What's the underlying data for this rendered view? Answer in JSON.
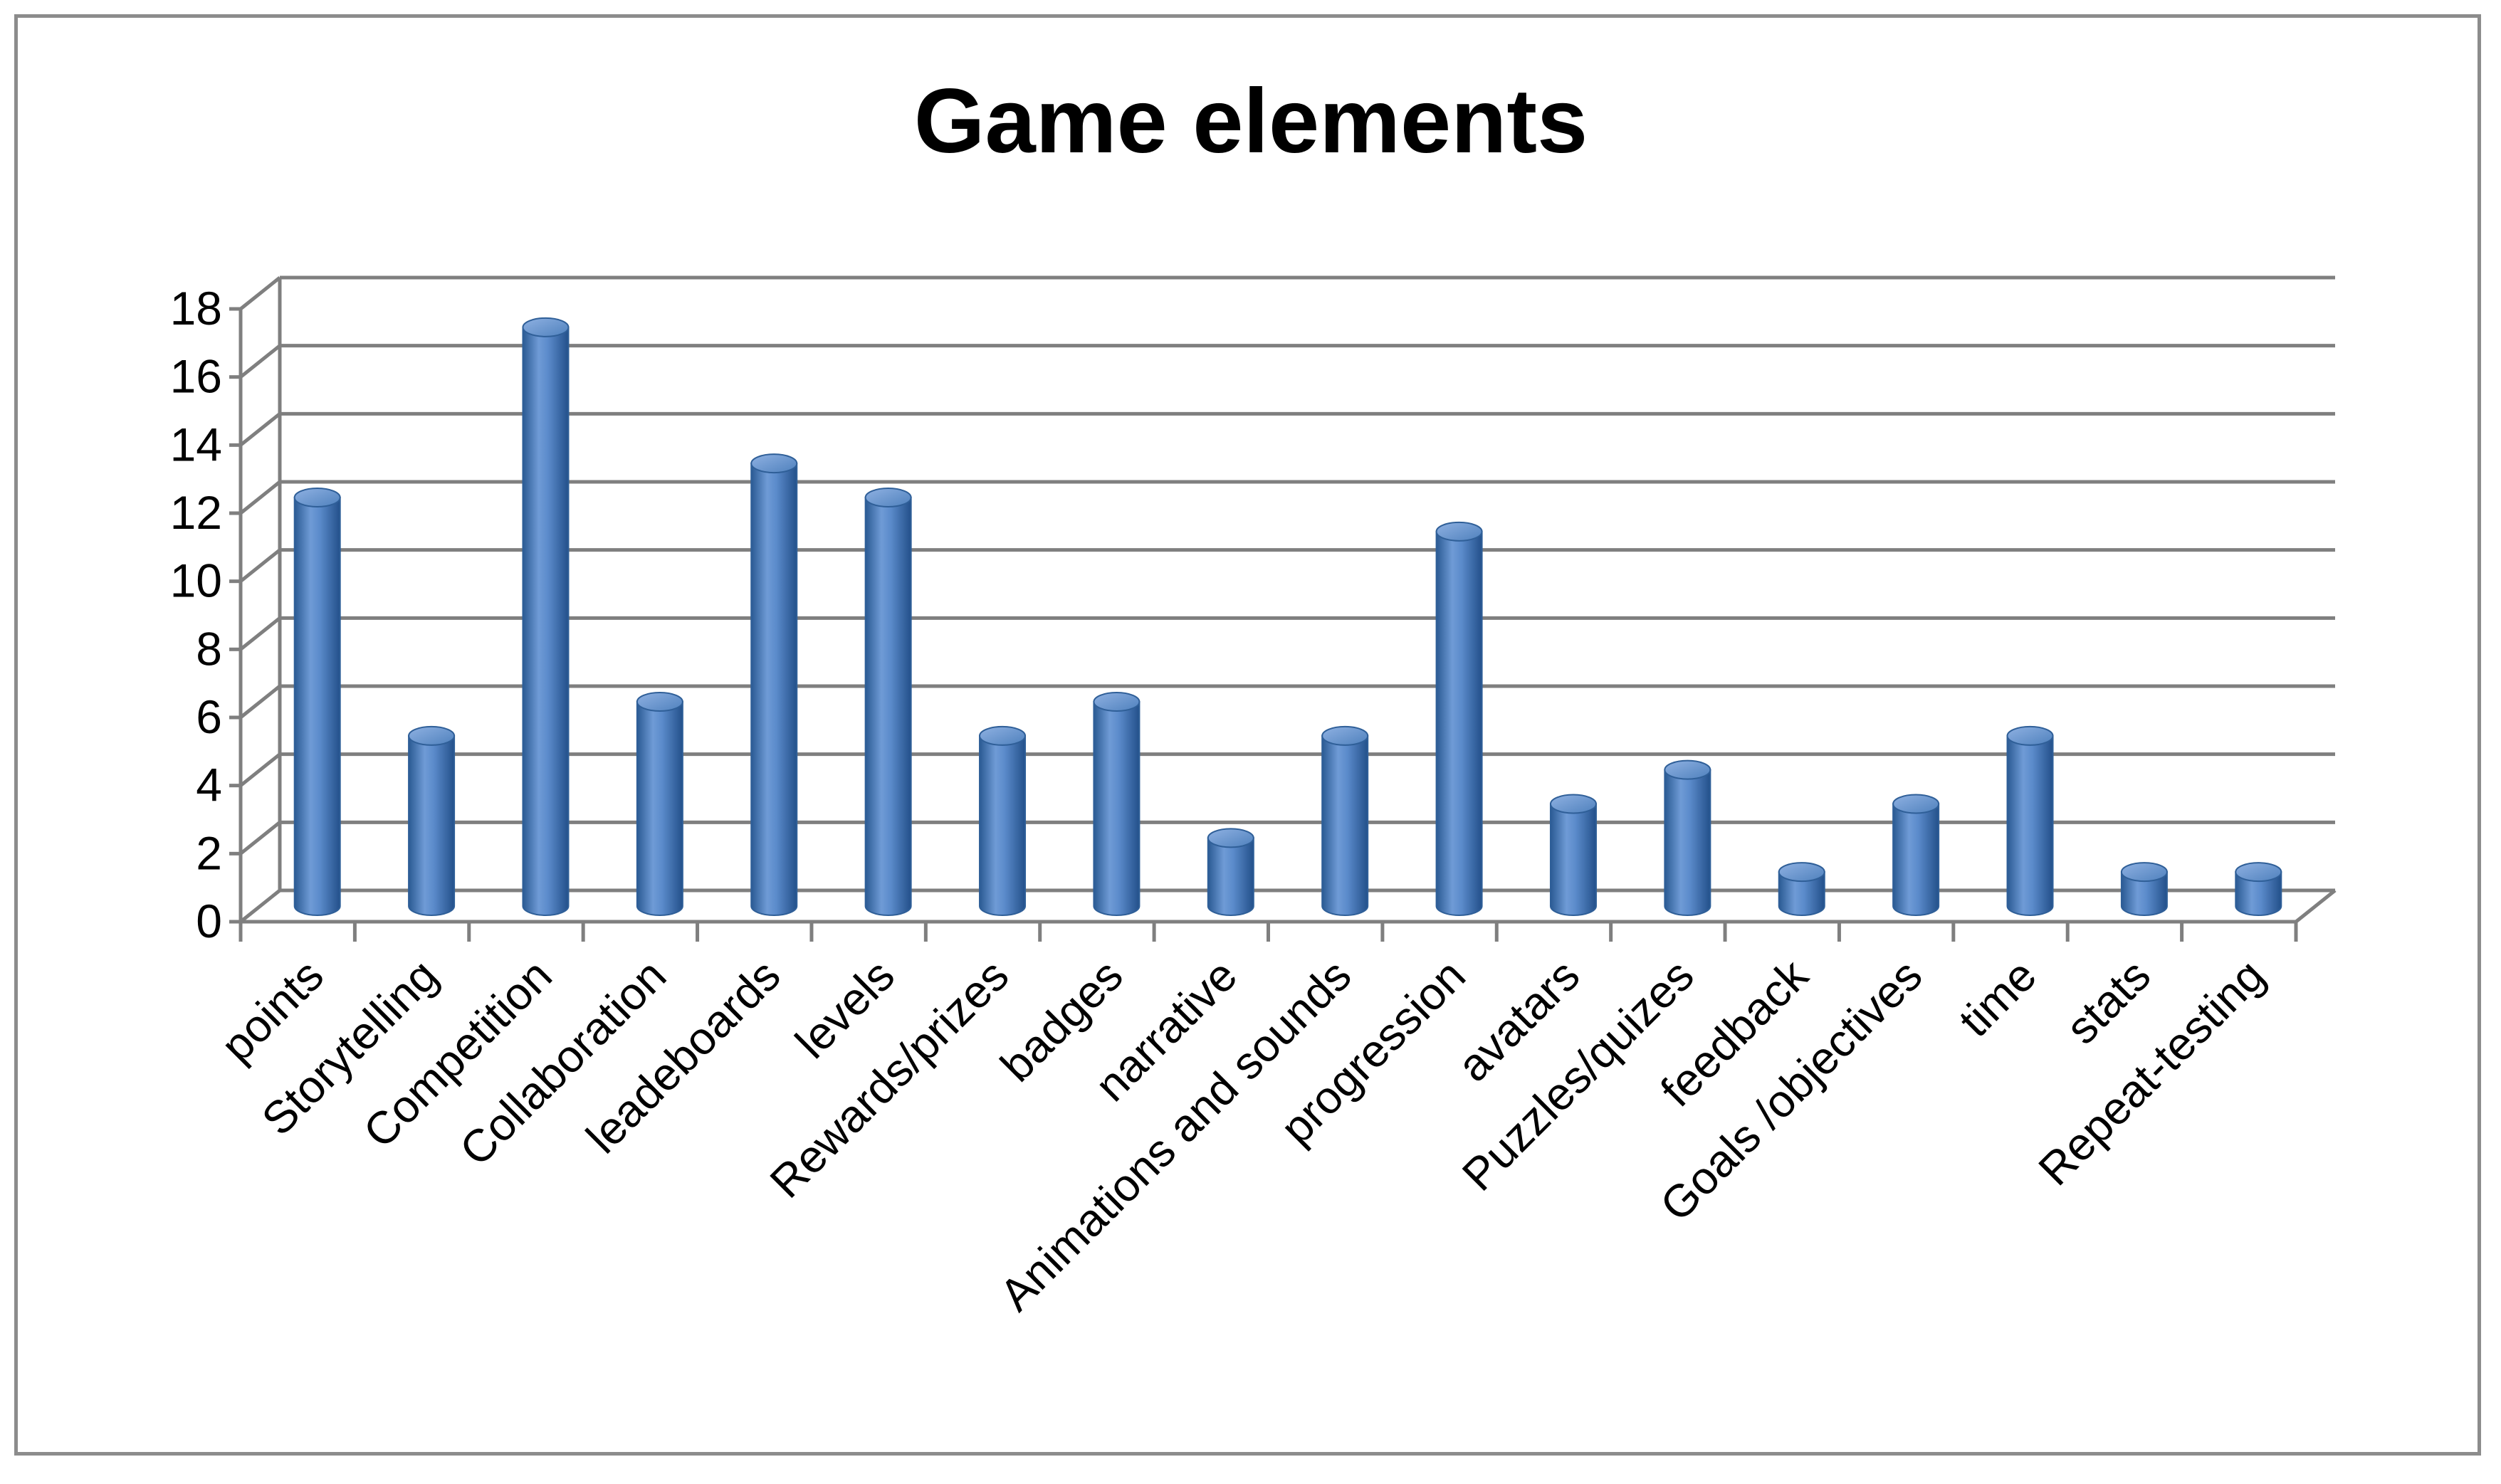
{
  "chart_data": {
    "type": "bar",
    "title": "Game elements",
    "xlabel": "",
    "ylabel": "",
    "ylim": [
      0,
      18
    ],
    "yticks": [
      0,
      2,
      4,
      6,
      8,
      10,
      12,
      14,
      16,
      18
    ],
    "grid": true,
    "legend": "none",
    "bar_style": "3d-cylinder",
    "colors": {
      "bar": "#4f81bd",
      "bar_dark": "#2a5a93",
      "bar_light": "#9dbbe5",
      "grid": "#7f7f7f",
      "frame": "#8c8c8c"
    },
    "categories": [
      "points",
      "Storytelling",
      "Competition",
      "Collaboration",
      "leadeboards",
      "levels",
      "Rewards/prizes",
      "badges",
      "narrative",
      "Animations and sounds",
      "progression",
      "avatars",
      "Puzzles/quizes",
      "feedback",
      "Goals /objectives",
      "time",
      "stats",
      "Repeat-testing"
    ],
    "values": [
      12,
      5,
      17,
      6,
      13,
      12,
      5,
      6,
      2,
      5,
      11,
      3,
      4,
      1,
      3,
      5,
      1,
      1
    ]
  }
}
